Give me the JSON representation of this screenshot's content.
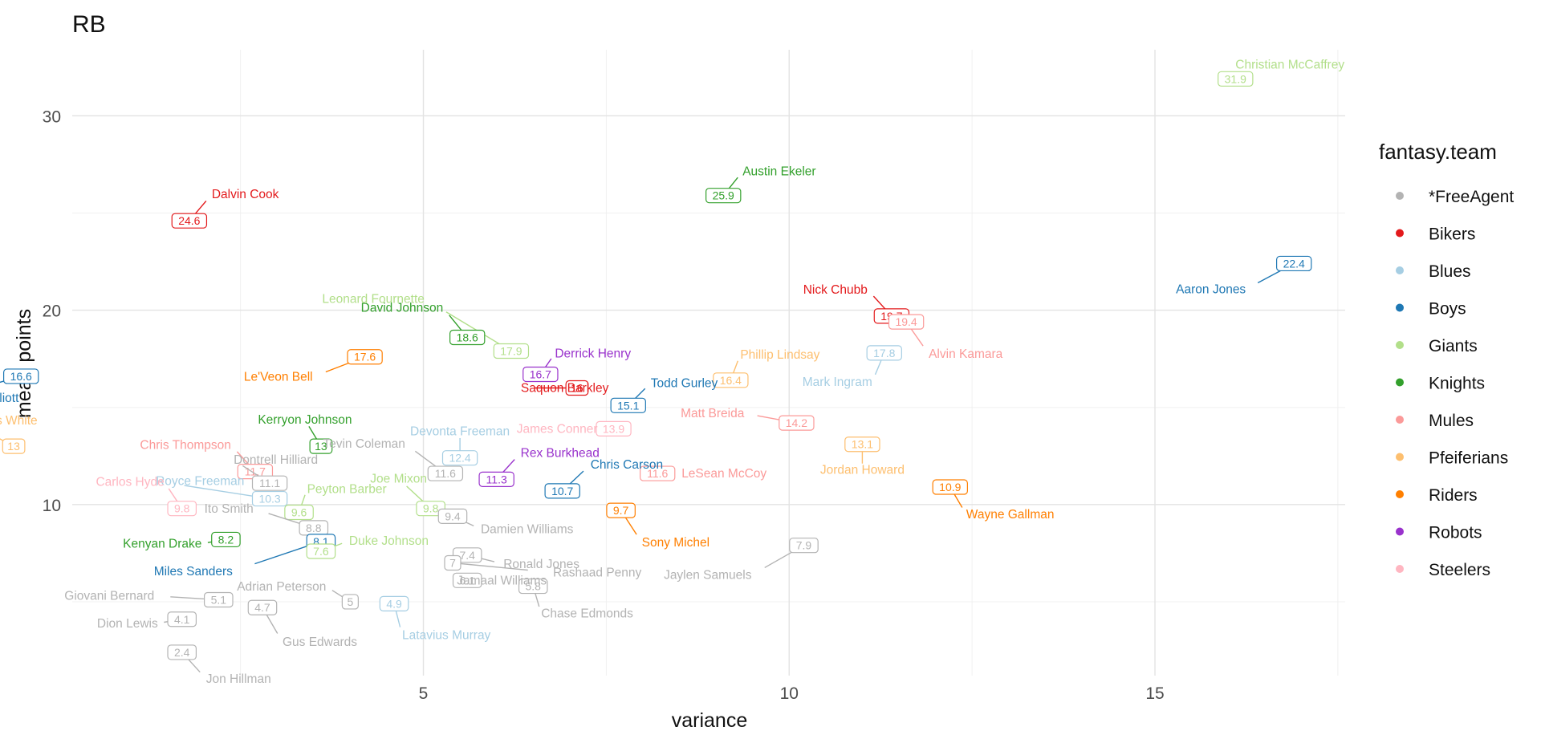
{
  "chart_data": {
    "type": "scatter",
    "title": "RB",
    "xlabel": "variance",
    "ylabel": "mean points",
    "xlim": [
      0.2,
      17.6
    ],
    "ylim": [
      1.2,
      33.4
    ],
    "x_ticks": [
      5,
      10,
      15
    ],
    "y_ticks": [
      10,
      20,
      30
    ],
    "grid": true,
    "legend": {
      "title": "fantasy.team",
      "placement": "right",
      "entries": [
        {
          "name": "*FreeAgent",
          "color": "#b3b3b3"
        },
        {
          "name": "Bikers",
          "color": "#e31a1c"
        },
        {
          "name": "Blues",
          "color": "#a6cee3"
        },
        {
          "name": "Boys",
          "color": "#1f78b4"
        },
        {
          "name": "Giants",
          "color": "#b2df8a"
        },
        {
          "name": "Knights",
          "color": "#33a02c"
        },
        {
          "name": "Mules",
          "color": "#fb9a99"
        },
        {
          "name": "Pfeiferians",
          "color": "#fdbf6f"
        },
        {
          "name": "Riders",
          "color": "#ff7f00"
        },
        {
          "name": "Robots",
          "color": "#9932cc"
        },
        {
          "name": "Steelers",
          "color": "#ffb6c1"
        }
      ]
    },
    "points": [
      {
        "player": "Christian McCaffrey",
        "team": "Giants",
        "x": 16.1,
        "y": 31.9,
        "value": "31.9"
      },
      {
        "player": "Austin Ekeler",
        "team": "Knights",
        "x": 9.1,
        "y": 25.9,
        "value": "25.9"
      },
      {
        "player": "Dalvin Cook",
        "team": "Bikers",
        "x": 1.8,
        "y": 24.6,
        "value": "24.6"
      },
      {
        "player": "Aaron Jones",
        "team": "Boys",
        "x": 16.9,
        "y": 22.4,
        "value": "22.4"
      },
      {
        "player": "Nick Chubb",
        "team": "Bikers",
        "x": 11.4,
        "y": 19.7,
        "value": "19.7"
      },
      {
        "player": "Alvin Kamara",
        "team": "Mules",
        "x": 11.6,
        "y": 19.4,
        "value": "19.4"
      },
      {
        "player": "Leonard Fournette",
        "team": "Giants",
        "x": 6.2,
        "y": 17.9,
        "value": "17.9"
      },
      {
        "player": "David Johnson",
        "team": "Knights",
        "x": 5.6,
        "y": 18.6,
        "value": "18.6"
      },
      {
        "player": "Mark Ingram",
        "team": "Blues",
        "x": 11.3,
        "y": 17.8,
        "value": "17.8"
      },
      {
        "player": "Le'Veon Bell",
        "team": "Riders",
        "x": 4.2,
        "y": 17.6,
        "value": "17.6"
      },
      {
        "player": "Derrick Henry",
        "team": "Robots",
        "x": 6.6,
        "y": 16.7,
        "value": "16.7"
      },
      {
        "player": "Ezekiel Elliott",
        "team": "Boys",
        "x": -0.5,
        "y": 16.6,
        "value": "16.6"
      },
      {
        "player": "Phillip Lindsay",
        "team": "Pfeiferians",
        "x": 9.2,
        "y": 16.4,
        "value": "16.4"
      },
      {
        "player": "Saquon Barkley",
        "team": "Bikers",
        "x": 7.1,
        "y": 16,
        "value": "16"
      },
      {
        "player": "Todd Gurley",
        "team": "Boys",
        "x": 7.8,
        "y": 15.1,
        "value": "15.1"
      },
      {
        "player": "Matt Breida",
        "team": "Mules",
        "x": 10.1,
        "y": 14.2,
        "value": "14.2"
      },
      {
        "player": "James Conner",
        "team": "Steelers",
        "x": 7.6,
        "y": 13.9,
        "value": "13.9"
      },
      {
        "player": "Jordan Howard",
        "team": "Pfeiferians",
        "x": 11,
        "y": 13.1,
        "value": "13.1"
      },
      {
        "player": "Kerryon Johnson",
        "team": "Knights",
        "x": 3.6,
        "y": 13,
        "value": "13"
      },
      {
        "player": "James White",
        "team": "Pfeiferians",
        "x": -0.6,
        "y": 13,
        "value": "13"
      },
      {
        "player": "Devonta Freeman",
        "team": "Blues",
        "x": 5.5,
        "y": 12.4,
        "value": "12.4"
      },
      {
        "player": "Chris Thompson",
        "team": "Mules",
        "x": 2.7,
        "y": 11.7,
        "value": "11.7"
      },
      {
        "player": "LeSean McCoy",
        "team": "Mules",
        "x": 8.2,
        "y": 11.6,
        "value": "11.6"
      },
      {
        "player": "Tevin Coleman",
        "team": "*FreeAgent",
        "x": 5.3,
        "y": 11.6,
        "value": "11.6"
      },
      {
        "player": "Dontrell Hilliard",
        "team": "*FreeAgent",
        "x": 2.9,
        "y": 11.1,
        "value": "11.1"
      },
      {
        "player": "Rex Burkhead",
        "team": "Robots",
        "x": 6,
        "y": 11.3,
        "value": "11.3"
      },
      {
        "player": "Wayne Gallman",
        "team": "Riders",
        "x": 12.2,
        "y": 10.9,
        "value": "10.9"
      },
      {
        "player": "Chris Carson",
        "team": "Boys",
        "x": 6.9,
        "y": 10.7,
        "value": "10.7"
      },
      {
        "player": "Royce Freeman",
        "team": "Blues",
        "x": 2.9,
        "y": 10.3,
        "value": "10.3"
      },
      {
        "player": "Joe Mixon",
        "team": "Giants",
        "x": 5.1,
        "y": 9.8,
        "value": "9.8"
      },
      {
        "player": "Carlos Hyde",
        "team": "Steelers",
        "x": 1.7,
        "y": 9.8,
        "value": "9.8"
      },
      {
        "player": "Sony Michel",
        "team": "Riders",
        "x": 7.7,
        "y": 9.7,
        "value": "9.7"
      },
      {
        "player": "Peyton Barber",
        "team": "Giants",
        "x": 3.3,
        "y": 9.6,
        "value": "9.6"
      },
      {
        "player": "Damien Williams",
        "team": "*FreeAgent",
        "x": 5.4,
        "y": 9.4,
        "value": "9.4"
      },
      {
        "player": "Ito Smith",
        "team": "*FreeAgent",
        "x": 3.5,
        "y": 8.8,
        "value": "8.8"
      },
      {
        "player": "Kenyan Drake",
        "team": "Knights",
        "x": 2.3,
        "y": 8.2,
        "value": "8.2"
      },
      {
        "player": "Miles Sanders",
        "team": "Boys",
        "x": 3.6,
        "y": 8.1,
        "value": "8.1"
      },
      {
        "player": "Jaylen Samuels",
        "team": "*FreeAgent",
        "x": 10.2,
        "y": 7.9,
        "value": "7.9"
      },
      {
        "player": "Duke Johnson",
        "team": "Giants",
        "x": 3.6,
        "y": 7.6,
        "value": "7.6"
      },
      {
        "player": "Ronald Jones",
        "team": "*FreeAgent",
        "x": 5.6,
        "y": 7.4,
        "value": "7.4"
      },
      {
        "player": "Rashaad Penny",
        "team": "*FreeAgent",
        "x": 5.4,
        "y": 7,
        "value": "7"
      },
      {
        "player": "Chase Edmonds",
        "team": "*FreeAgent",
        "x": 6.5,
        "y": 5.8,
        "value": "5.8"
      },
      {
        "player": "Giovani Bernard",
        "team": "*FreeAgent",
        "x": 2.2,
        "y": 5.1,
        "value": "5.1"
      },
      {
        "player": "Adrian Peterson",
        "team": "*FreeAgent",
        "x": 4,
        "y": 5,
        "value": "5"
      },
      {
        "player": "Latavius Murray",
        "team": "Blues",
        "x": 4.6,
        "y": 4.9,
        "value": "4.9"
      },
      {
        "player": "Gus Edwards",
        "team": "*FreeAgent",
        "x": 2.8,
        "y": 4.7,
        "value": "4.7"
      },
      {
        "player": "Dion Lewis",
        "team": "*FreeAgent",
        "x": 1.7,
        "y": 4.1,
        "value": "4.1"
      },
      {
        "player": "Jon Hillman",
        "team": "*FreeAgent",
        "x": 1.7,
        "y": 2.4,
        "value": "2.4"
      },
      {
        "player": "Jamaal Williams",
        "team": "*FreeAgent",
        "x": 5.6,
        "y": 6.1,
        "value": "6.1"
      }
    ]
  }
}
